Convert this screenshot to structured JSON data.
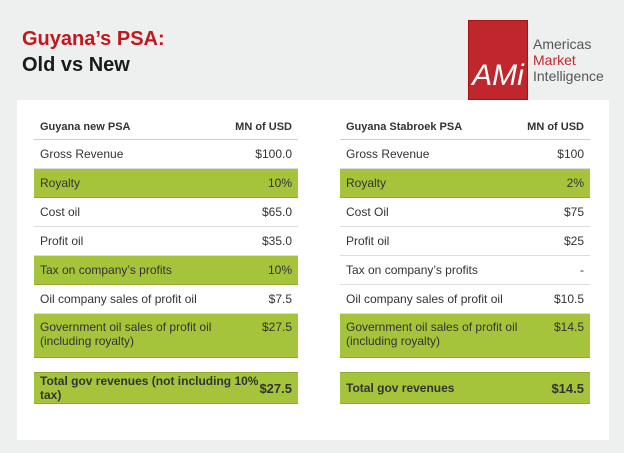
{
  "title": {
    "line1": "Guyana’s PSA:",
    "line2": "Old vs New"
  },
  "logo": {
    "mark": "AMi",
    "line1": "Americas",
    "line2": "Market",
    "line3": "Intelligence"
  },
  "colors": {
    "accent_red": "#c4161c",
    "highlight_green": "#a5c43b"
  },
  "left": {
    "header": "Guyana new PSA",
    "unit": "MN of USD",
    "rows": [
      {
        "label": "Gross Revenue",
        "value": "$100.0"
      },
      {
        "label": "Royalty",
        "value": "10%"
      },
      {
        "label": "Cost oil",
        "value": "$65.0"
      },
      {
        "label": "Profit oil",
        "value": "$35.0"
      },
      {
        "label": "Tax on company’s profits",
        "value": "10%"
      },
      {
        "label": "Oil company sales of profit oil",
        "value": "$7.5"
      },
      {
        "label": "Government oil sales of profit oil (including royalty)",
        "value": "$27.5"
      }
    ],
    "total": {
      "label": "Total gov revenues (not including 10% tax)",
      "value": "$27.5"
    }
  },
  "right": {
    "header": "Guyana Stabroek PSA",
    "unit": "MN of USD",
    "rows": [
      {
        "label": "Gross Revenue",
        "value": "$100"
      },
      {
        "label": "Royalty",
        "value": "2%"
      },
      {
        "label": "Cost Oil",
        "value": "$75"
      },
      {
        "label": "Profit oil",
        "value": "$25"
      },
      {
        "label": "Tax on company’s profits",
        "value": "-"
      },
      {
        "label": "Oil company sales of profit oil",
        "value": "$10.5"
      },
      {
        "label": "Government oil sales of profit oil (including royalty)",
        "value": "$14.5"
      }
    ],
    "total": {
      "label": "Total gov revenues",
      "value": "$14.5"
    }
  }
}
